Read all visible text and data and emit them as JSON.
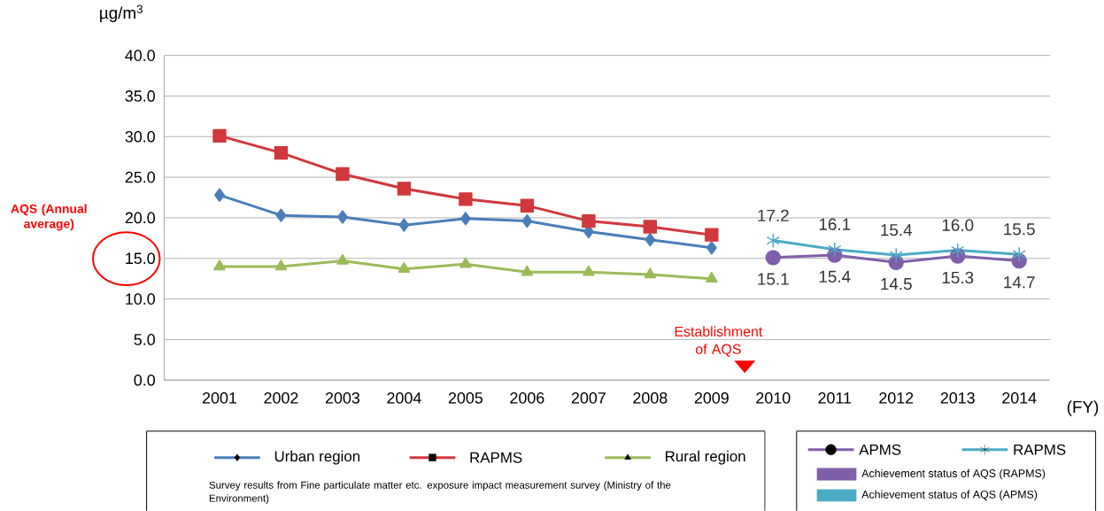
{
  "chart_data": {
    "type": "line",
    "ylabel": "µg/m$^{3}$",
    "xlabel": "(FY)",
    "x": [
      2001,
      2002,
      2003,
      2004,
      2005,
      2006,
      2007,
      2008,
      2009
    ],
    "xlim": [
      2000.1,
      2014.5
    ],
    "xticks": [
      2001,
      2002,
      2003,
      2004,
      2005,
      2006,
      2007,
      2008,
      2009,
      2010,
      2011,
      2012,
      2013,
      2014
    ],
    "ylim": [
      0,
      40
    ],
    "yticks": [
      {
        "value": 0,
        "label": "0.0"
      },
      {
        "value": 5,
        "label": "5.0"
      },
      {
        "value": 10,
        "label": "10.0"
      },
      {
        "value": 15,
        "label": "15.0"
      },
      {
        "value": 20,
        "label": "20.0"
      },
      {
        "value": 25,
        "label": "25.0"
      },
      {
        "value": 30,
        "label": "30.0"
      },
      {
        "value": 35,
        "label": "35.0"
      },
      {
        "value": 40,
        "label": "40.0"
      }
    ],
    "grid": "y",
    "legend": "bottom",
    "line_style": "solid",
    "series": [
      {
        "name": "Urban region",
        "color": "#4a7ebb",
        "marker": "diamond",
        "values": [
          22.8,
          20.3,
          20.1,
          19.1,
          19.9,
          19.6,
          18.3,
          17.3,
          16.3
        ]
      },
      {
        "name": "RAPMS",
        "color": "#d0383b",
        "marker": "square",
        "values": [
          30.1,
          28.0,
          25.4,
          23.6,
          22.3,
          21.5,
          19.6,
          18.9,
          17.9
        ]
      },
      {
        "name": "Rural region",
        "color": "#9bbb59",
        "marker": "triangle",
        "values": [
          14.0,
          14.0,
          14.7,
          13.7,
          14.3,
          13.3,
          13.3,
          13.0,
          12.5
        ]
      },
      {
        "name": "APMS",
        "color": "#7f5fa9",
        "marker": "circle",
        "x": [
          2010,
          2011,
          2012,
          2013,
          2014
        ],
        "values": [
          15.1,
          15.4,
          14.5,
          15.3,
          14.7
        ],
        "value_labels": [
          "15.1",
          "15.4",
          "14.5",
          "15.3",
          "14.7"
        ]
      },
      {
        "name": "RAPMS",
        "color": "#4bacc6",
        "marker": "cross",
        "x": [
          2010,
          2011,
          2012,
          2013,
          2014
        ],
        "values": [
          17.2,
          16.1,
          15.4,
          16.0,
          15.5
        ],
        "value_labels": [
          "17.2",
          "16.1",
          "15.4",
          "16.0",
          "15.5"
        ]
      }
    ],
    "annotations": [
      "Survey results from Fine particulate matter etc. exposure impact measurement survey (Ministry of the Environment)",
      "Achievement status of AQS (RAPMS)",
      "Achievement status of AQS (APMS)",
      "AQS (Annual average)",
      "Establishment of AQS"
    ]
  }
}
